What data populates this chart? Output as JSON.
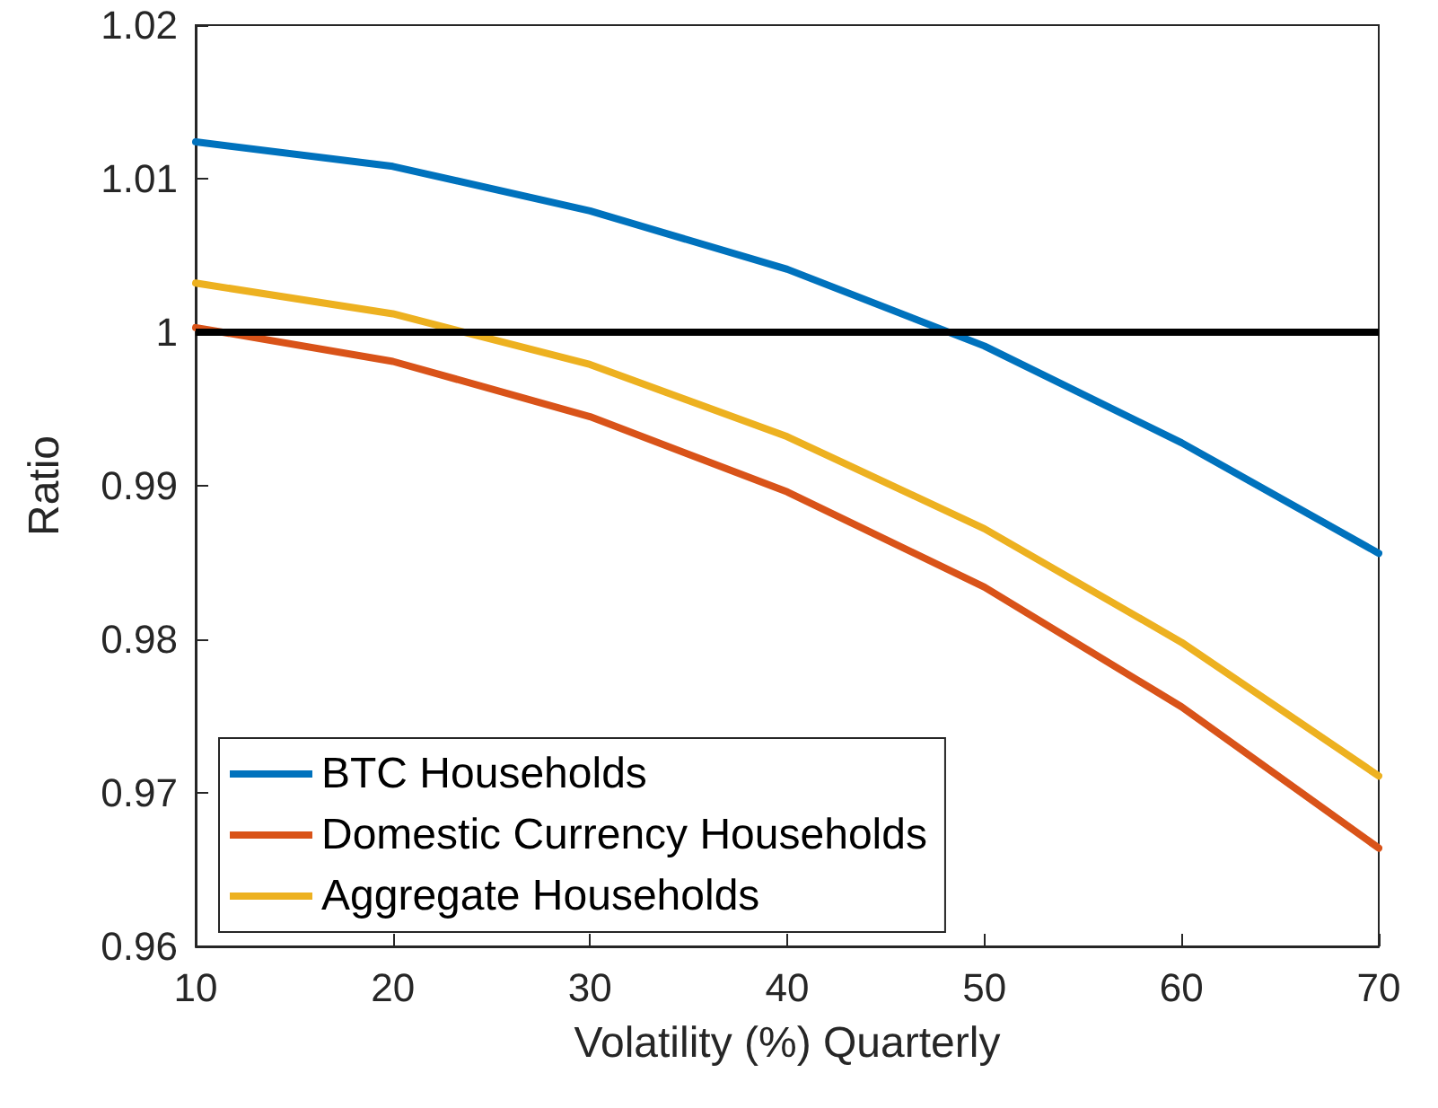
{
  "chart_data": {
    "type": "line",
    "xlabel": "Volatility (%) Quarterly",
    "ylabel": "Ratio",
    "x": [
      10,
      20,
      30,
      40,
      50,
      60,
      70
    ],
    "series": [
      {
        "name": "BTC Households",
        "color": "#0072bd",
        "values": [
          1.0124,
          1.0108,
          1.0079,
          1.0041,
          0.9991,
          0.9928,
          0.9856
        ]
      },
      {
        "name": "Domestic Currency Households",
        "color": "#d95319",
        "values": [
          1.0003,
          0.9981,
          0.9945,
          0.9896,
          0.9834,
          0.9756,
          0.9664
        ]
      },
      {
        "name": "Aggregate Households",
        "color": "#edb120",
        "values": [
          1.0032,
          1.0012,
          0.9979,
          0.9932,
          0.9872,
          0.9798,
          0.9711
        ]
      }
    ],
    "xlim": [
      10,
      70
    ],
    "xticks": [
      10,
      20,
      30,
      40,
      50,
      60,
      70
    ],
    "ylim": [
      0.96,
      1.02
    ],
    "yticks": [
      0.96,
      0.97,
      0.98,
      0.99,
      1,
      1.01,
      1.02
    ],
    "ref_lines": [
      {
        "axis": "y",
        "value": 1,
        "color": "#000000",
        "line_style": "solid"
      }
    ],
    "grid": false,
    "legend": "bottom left",
    "marker": "none",
    "line_style": "solid"
  }
}
